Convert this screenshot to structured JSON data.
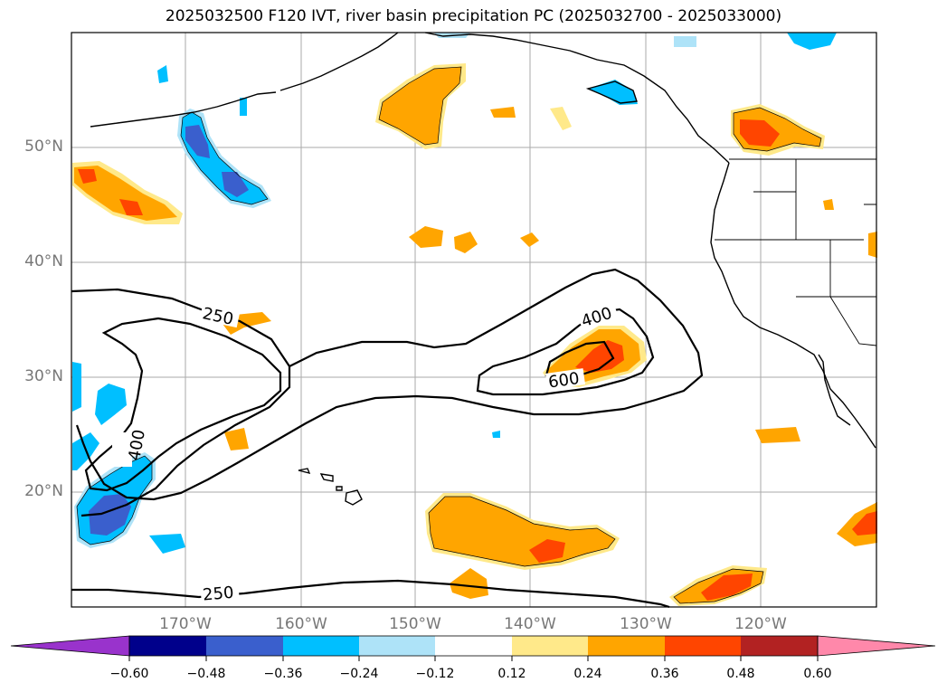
{
  "title": "2025032500 F120 IVT, river basin precipitation PC (2025032700 - 2025033000)",
  "lat_labels": [
    "50°N",
    "40°N",
    "30°N",
    "20°N"
  ],
  "lon_labels": [
    "170°W",
    "160°W",
    "150°W",
    "140°W",
    "130°W",
    "120°W"
  ],
  "contour_labels": [
    "250",
    "400",
    "400",
    "600",
    "250"
  ],
  "colorbar": {
    "ticks": [
      "−0.60",
      "−0.48",
      "−0.36",
      "−0.24",
      "−0.12",
      "0.12",
      "0.24",
      "0.36",
      "0.48",
      "0.60"
    ],
    "colors": [
      "#9933cc",
      "#00008b",
      "#3a5fcd",
      "#00bfff",
      "#aee3f8",
      "#ffffff",
      "#ffe98a",
      "#ffa500",
      "#ff4500",
      "#b22222",
      "#ff88aa"
    ]
  },
  "colors": {
    "ocean": "#ffffff",
    "coast": "#000000",
    "grid": "#aaaaaa",
    "pos_light": "#ffe98a",
    "pos_mid": "#ffa500",
    "pos_high": "#ff4500",
    "neg_light": "#aee3f8",
    "neg_mid": "#00bfff",
    "neg_high": "#3a5fcd"
  }
}
